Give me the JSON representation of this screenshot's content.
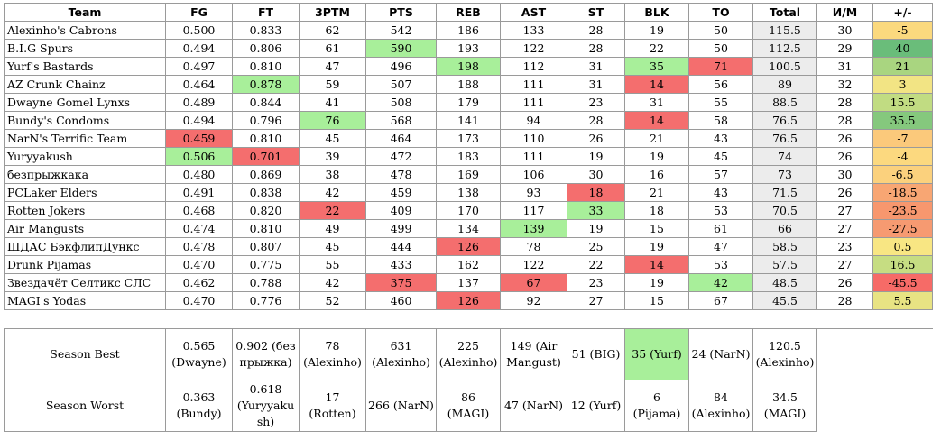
{
  "columns": [
    "Team",
    "FG",
    "FT",
    "3PTM",
    "PTS",
    "REB",
    "AST",
    "ST",
    "BLK",
    "TO",
    "Total",
    "И/М",
    "+/-"
  ],
  "rows": [
    {
      "team": "Alexinho's Cabrons",
      "fg": "0.500",
      "ft": "0.833",
      "tpm": "62",
      "pts": "542",
      "reb": "186",
      "ast": "133",
      "st": "28",
      "blk": "19",
      "to": "50",
      "total": "115.5",
      "gm": "30",
      "pm": "-5"
    },
    {
      "team": "B.I.G Spurs",
      "fg": "0.494",
      "ft": "0.806",
      "tpm": "61",
      "pts": "590",
      "reb": "193",
      "ast": "122",
      "st": "28",
      "blk": "22",
      "to": "50",
      "total": "112.5",
      "gm": "29",
      "pm": "40"
    },
    {
      "team": "Yurf's Bastards",
      "fg": "0.497",
      "ft": "0.810",
      "tpm": "47",
      "pts": "496",
      "reb": "198",
      "ast": "112",
      "st": "31",
      "blk": "35",
      "to": "71",
      "total": "100.5",
      "gm": "31",
      "pm": "21"
    },
    {
      "team": "AZ Crunk Chainz",
      "fg": "0.464",
      "ft": "0.878",
      "tpm": "59",
      "pts": "507",
      "reb": "188",
      "ast": "111",
      "st": "31",
      "blk": "14",
      "to": "56",
      "total": "89",
      "gm": "32",
      "pm": "3"
    },
    {
      "team": "Dwayne Gomel Lynxs",
      "fg": "0.489",
      "ft": "0.844",
      "tpm": "41",
      "pts": "508",
      "reb": "179",
      "ast": "111",
      "st": "23",
      "blk": "31",
      "to": "55",
      "total": "88.5",
      "gm": "28",
      "pm": "15.5"
    },
    {
      "team": "Bundy's Condoms",
      "fg": "0.494",
      "ft": "0.796",
      "tpm": "76",
      "pts": "568",
      "reb": "141",
      "ast": "94",
      "st": "28",
      "blk": "14",
      "to": "58",
      "total": "76.5",
      "gm": "28",
      "pm": "35.5"
    },
    {
      "team": "NarN's Terrific Team",
      "fg": "0.459",
      "ft": "0.810",
      "tpm": "45",
      "pts": "464",
      "reb": "173",
      "ast": "110",
      "st": "26",
      "blk": "21",
      "to": "43",
      "total": "76.5",
      "gm": "26",
      "pm": "-7"
    },
    {
      "team": "Yuryyakush",
      "fg": "0.506",
      "ft": "0.701",
      "tpm": "39",
      "pts": "472",
      "reb": "183",
      "ast": "111",
      "st": "19",
      "blk": "19",
      "to": "45",
      "total": "74",
      "gm": "26",
      "pm": "-4"
    },
    {
      "team": "безпрыжкака",
      "fg": "0.480",
      "ft": "0.869",
      "tpm": "38",
      "pts": "478",
      "reb": "169",
      "ast": "106",
      "st": "30",
      "blk": "16",
      "to": "57",
      "total": "73",
      "gm": "30",
      "pm": "-6.5"
    },
    {
      "team": "PCLaker Elders",
      "fg": "0.491",
      "ft": "0.838",
      "tpm": "42",
      "pts": "459",
      "reb": "138",
      "ast": "93",
      "st": "18",
      "blk": "21",
      "to": "43",
      "total": "71.5",
      "gm": "26",
      "pm": "-18.5"
    },
    {
      "team": "Rotten Jokers",
      "fg": "0.468",
      "ft": "0.820",
      "tpm": "22",
      "pts": "409",
      "reb": "170",
      "ast": "117",
      "st": "33",
      "blk": "18",
      "to": "53",
      "total": "70.5",
      "gm": "27",
      "pm": "-23.5"
    },
    {
      "team": "Air Mangusts",
      "fg": "0.474",
      "ft": "0.810",
      "tpm": "49",
      "pts": "499",
      "reb": "134",
      "ast": "139",
      "st": "19",
      "blk": "15",
      "to": "61",
      "total": "66",
      "gm": "27",
      "pm": "-27.5"
    },
    {
      "team": "ШДАС БэкфлипДункс",
      "fg": "0.478",
      "ft": "0.807",
      "tpm": "45",
      "pts": "444",
      "reb": "126",
      "ast": "78",
      "st": "25",
      "blk": "19",
      "to": "47",
      "total": "58.5",
      "gm": "23",
      "pm": "0.5"
    },
    {
      "team": "Drunk Pijamas",
      "fg": "0.470",
      "ft": "0.775",
      "tpm": "55",
      "pts": "433",
      "reb": "162",
      "ast": "122",
      "st": "22",
      "blk": "14",
      "to": "53",
      "total": "57.5",
      "gm": "27",
      "pm": "16.5"
    },
    {
      "team": "Звездачёт Селтикс СЛС",
      "fg": "0.462",
      "ft": "0.788",
      "tpm": "42",
      "pts": "375",
      "reb": "137",
      "ast": "67",
      "st": "23",
      "blk": "19",
      "to": "42",
      "total": "48.5",
      "gm": "26",
      "pm": "-45.5"
    },
    {
      "team": "MAGI's Yodas",
      "fg": "0.470",
      "ft": "0.776",
      "tpm": "52",
      "pts": "460",
      "reb": "126",
      "ast": "92",
      "st": "27",
      "blk": "15",
      "to": "67",
      "total": "45.5",
      "gm": "28",
      "pm": "5.5"
    }
  ],
  "highlights": {
    "best_color": "#a8ef9a",
    "worst_color": "#f46e6e",
    "total_bg": "#ececec"
  },
  "pm_colors": [
    "#fbd97e",
    "#6abd7a",
    "#a9d580",
    "#f2e484",
    "#c1dc82",
    "#85c87d",
    "#fbc97b",
    "#fcd97f",
    "#fbd17d",
    "#f8a673",
    "#f7976e",
    "#f69a71",
    "#f8e683",
    "#c6dd82",
    "#f66b67",
    "#e8e383"
  ],
  "season_best": {
    "label": "Season Best",
    "fg": [
      "0.565",
      "(Dwayne)"
    ],
    "ft": [
      "0.902 (без",
      "прыжка)"
    ],
    "tpm": [
      "78",
      "(Alexinho)"
    ],
    "pts": [
      "631",
      "(Alexinho)"
    ],
    "reb": [
      "225",
      "(Alexinho)"
    ],
    "ast": [
      "149 (Air",
      "Mangust)"
    ],
    "st": [
      "51 (BIG)",
      ""
    ],
    "blk": [
      "35 (Yurf)",
      ""
    ],
    "to": [
      "24 (NarN)",
      ""
    ],
    "total": [
      "120.5",
      "(Alexinho)"
    ]
  },
  "season_worst": {
    "label": "Season Worst",
    "fg": [
      "0.363",
      "(Bundy)"
    ],
    "ft": [
      "0.618",
      "(Yuryyaku",
      "sh)"
    ],
    "tpm": [
      "17",
      "(Rotten)"
    ],
    "pts": [
      "266 (NarN)",
      ""
    ],
    "reb": [
      "86 (MAGI)",
      ""
    ],
    "ast": [
      "47 (NarN)",
      ""
    ],
    "st": [
      "12 (Yurf)",
      ""
    ],
    "blk": [
      "6",
      "(Pijama)"
    ],
    "to": [
      "84",
      "(Alexinho)"
    ],
    "total": [
      "34.5",
      "(MAGI)"
    ]
  }
}
